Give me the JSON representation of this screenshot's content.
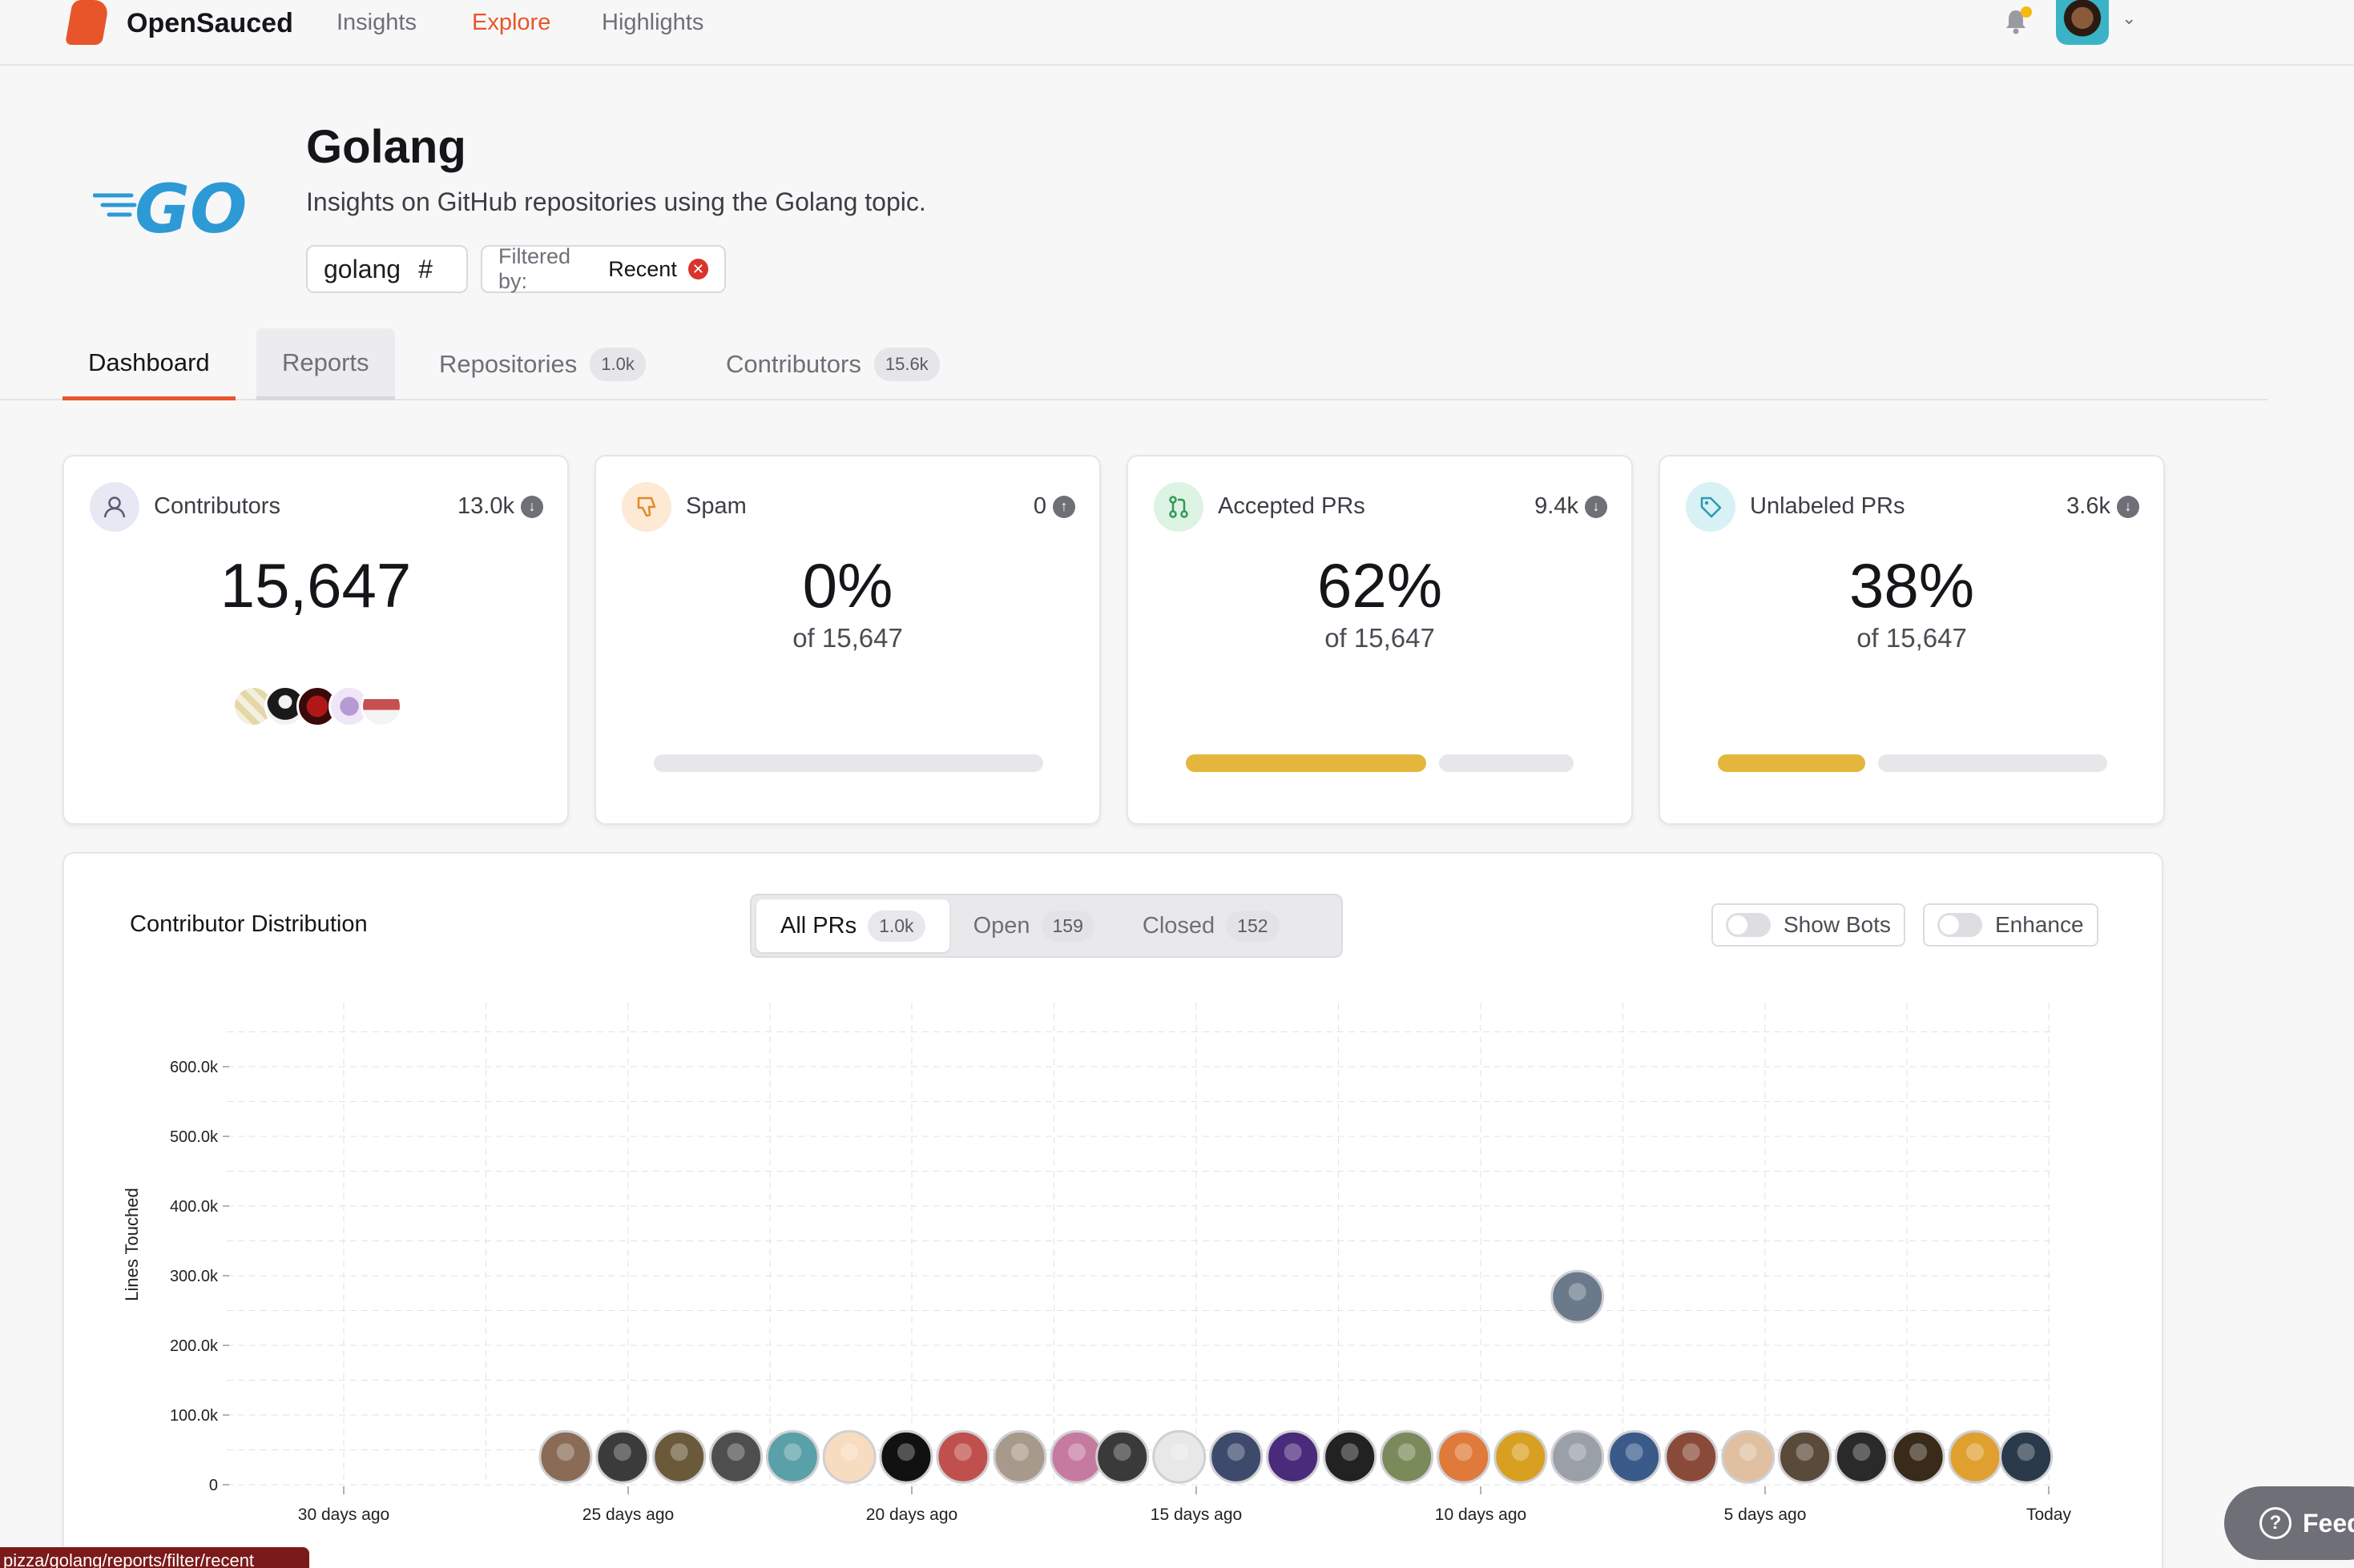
{
  "nav": {
    "brand": "OpenSauced",
    "links": [
      "Insights",
      "Explore",
      "Highlights"
    ],
    "active_link": "Explore"
  },
  "header": {
    "title": "Golang",
    "subtitle": "Insights on GitHub repositories using the Golang topic.",
    "topic_chip": "golang",
    "topic_hash": "#",
    "filter_label": "Filtered by:",
    "filter_value": "Recent",
    "logo_text": "GO"
  },
  "tabs": [
    {
      "label": "Dashboard",
      "count": ""
    },
    {
      "label": "Reports",
      "count": ""
    },
    {
      "label": "Repositories",
      "count": "1.0k"
    },
    {
      "label": "Contributors",
      "count": "15.6k"
    }
  ],
  "cards": [
    {
      "label": "Contributors",
      "delta": "13.0k",
      "delta_dir": "down",
      "value": "15,647",
      "sub": ""
    },
    {
      "label": "Spam",
      "delta": "0",
      "delta_dir": "up",
      "value": "0%",
      "sub": "of 15,647",
      "progress": 0
    },
    {
      "label": "Accepted PRs",
      "delta": "9.4k",
      "delta_dir": "down",
      "value": "62%",
      "sub": "of 15,647",
      "progress": 0.62
    },
    {
      "label": "Unlabeled PRs",
      "delta": "3.6k",
      "delta_dir": "down",
      "value": "38%",
      "sub": "of 15,647",
      "progress": 0.38
    }
  ],
  "distribution": {
    "title": "Contributor Distribution",
    "filters": [
      {
        "label": "All PRs",
        "count": "1.0k"
      },
      {
        "label": "Open",
        "count": "159"
      },
      {
        "label": "Closed",
        "count": "152"
      }
    ],
    "toggles": [
      "Show Bots",
      "Enhance"
    ]
  },
  "chart_data": {
    "type": "scatter",
    "title": "",
    "xlabel": "",
    "ylabel": "Lines Touched",
    "x_ticks": [
      "30 days ago",
      "25 days ago",
      "20 days ago",
      "15 days ago",
      "10 days ago",
      "5 days ago",
      "Today"
    ],
    "y_ticks": [
      "0",
      "100.0k",
      "200.0k",
      "300.0k",
      "400.0k",
      "500.0k",
      "600.0k"
    ],
    "xlim_days_ago": [
      32,
      0
    ],
    "ylim": [
      0,
      650000
    ],
    "grid": true,
    "points_days_ago": [
      {
        "days_ago": 26.1,
        "lines": 40000
      },
      {
        "days_ago": 25.1,
        "lines": 40000
      },
      {
        "days_ago": 24.1,
        "lines": 40000
      },
      {
        "days_ago": 23.1,
        "lines": 40000
      },
      {
        "days_ago": 22.1,
        "lines": 40000
      },
      {
        "days_ago": 21.1,
        "lines": 40000
      },
      {
        "days_ago": 20.1,
        "lines": 40000
      },
      {
        "days_ago": 19.1,
        "lines": 40000
      },
      {
        "days_ago": 18.1,
        "lines": 40000
      },
      {
        "days_ago": 17.1,
        "lines": 40000
      },
      {
        "days_ago": 16.3,
        "lines": 40000
      },
      {
        "days_ago": 15.3,
        "lines": 40000
      },
      {
        "days_ago": 14.3,
        "lines": 40000
      },
      {
        "days_ago": 13.3,
        "lines": 40000
      },
      {
        "days_ago": 12.3,
        "lines": 40000
      },
      {
        "days_ago": 11.3,
        "lines": 40000
      },
      {
        "days_ago": 10.3,
        "lines": 40000
      },
      {
        "days_ago": 9.3,
        "lines": 40000
      },
      {
        "days_ago": 8.3,
        "lines": 40000
      },
      {
        "days_ago": 8.3,
        "lines": 270000
      },
      {
        "days_ago": 7.3,
        "lines": 40000
      },
      {
        "days_ago": 6.3,
        "lines": 40000
      },
      {
        "days_ago": 5.3,
        "lines": 40000
      },
      {
        "days_ago": 4.3,
        "lines": 40000
      },
      {
        "days_ago": 3.3,
        "lines": 40000
      },
      {
        "days_ago": 2.3,
        "lines": 40000
      },
      {
        "days_ago": 1.3,
        "lines": 40000
      },
      {
        "days_ago": 0.4,
        "lines": 40000
      }
    ]
  },
  "colors": {
    "accent": "#e8552a",
    "gold": "#e4b63b",
    "go_blue": "#2d9ad6"
  },
  "status_bar": "pizza/golang/reports/filter/recent",
  "feedback_label": "Feed"
}
